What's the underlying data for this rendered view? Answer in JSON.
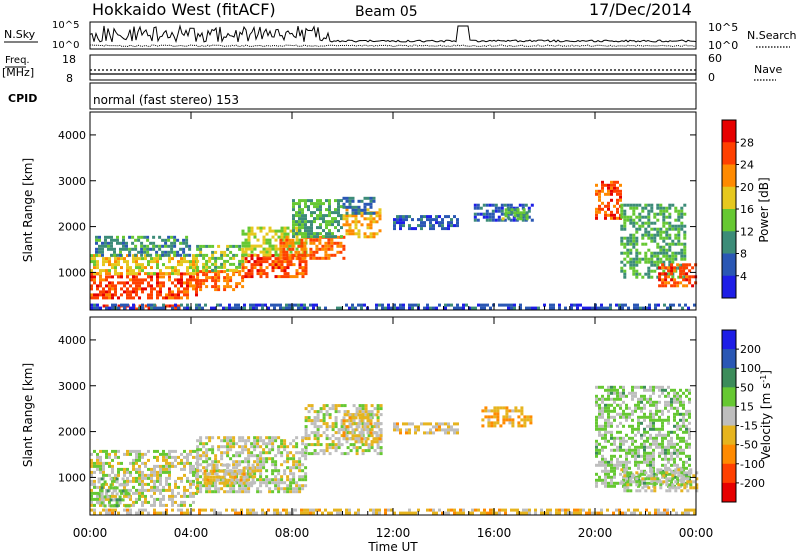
{
  "header": {
    "station": "Hokkaido West (fitACF)",
    "beam": "Beam 05",
    "date": "17/Dec/2014"
  },
  "noise_panel": {
    "left_label": "N.Sky",
    "right_label": "N.Search",
    "left_ticks": [
      "10^5",
      "10^0"
    ],
    "right_ticks": [
      "10^5",
      "10^0"
    ]
  },
  "freq_panel": {
    "left_label": "Freq.",
    "left_unit": "[MHz]",
    "right_label": "Nave",
    "left_ticks": [
      "18",
      "8"
    ],
    "right_ticks": [
      "60",
      "0"
    ]
  },
  "cpid": {
    "label": "CPID",
    "value": "normal (fast stereo) 153"
  },
  "x_axis": {
    "label": "Time UT",
    "ticks": [
      "00:00",
      "04:00",
      "08:00",
      "12:00",
      "16:00",
      "20:00",
      "00:00"
    ]
  },
  "power_panel": {
    "ylabel": "Slant Range [km]",
    "yticks": [
      "1000",
      "2000",
      "3000",
      "4000"
    ],
    "colorbar_label": "Power [dB]",
    "colorbar_ticks": [
      "4",
      "8",
      "12",
      "16",
      "20",
      "24",
      "28"
    ]
  },
  "velocity_panel": {
    "ylabel": "Slant Range [km]",
    "yticks": [
      "1000",
      "2000",
      "3000",
      "4000"
    ],
    "colorbar_label": "Velocity [m s^-1]",
    "colorbar_ticks": [
      "200",
      "100",
      "50",
      "15",
      "-15",
      "-50",
      "-100",
      "-200"
    ]
  },
  "chart_data": [
    {
      "type": "heatmap",
      "variable": "power",
      "unit": "dB",
      "x_range_hours": [
        0,
        24
      ],
      "y_range_km": [
        180,
        4500
      ],
      "color_range": [
        0,
        32
      ],
      "colors": [
        "#1e1ee6",
        "#2a57b4",
        "#3c8c78",
        "#66c832",
        "#e6c81e",
        "#ff8a00",
        "#ff4000",
        "#e60000"
      ],
      "regions": [
        {
          "t0": 0.0,
          "t1": 4.2,
          "r0": 420,
          "r1": 1000,
          "level": 26
        },
        {
          "t0": 0.0,
          "t1": 4.2,
          "r0": 1000,
          "r1": 1400,
          "level": 18
        },
        {
          "t0": 0.2,
          "t1": 4.0,
          "r0": 1400,
          "r1": 1800,
          "level": 10
        },
        {
          "t0": 0.5,
          "t1": 3.5,
          "r0": 230,
          "r1": 300,
          "level": 28
        },
        {
          "t0": 4.2,
          "t1": 6.0,
          "r0": 650,
          "r1": 1050,
          "level": 24
        },
        {
          "t0": 4.2,
          "t1": 6.0,
          "r0": 1050,
          "r1": 1600,
          "level": 14
        },
        {
          "t0": 6.0,
          "t1": 8.5,
          "r0": 900,
          "r1": 1400,
          "level": 26
        },
        {
          "t0": 6.0,
          "t1": 8.5,
          "r0": 1400,
          "r1": 2000,
          "level": 16
        },
        {
          "t0": 7.5,
          "t1": 10.0,
          "r0": 1300,
          "r1": 1800,
          "level": 24
        },
        {
          "t0": 8.0,
          "t1": 10.0,
          "r0": 1800,
          "r1": 2600,
          "level": 12
        },
        {
          "t0": 10.0,
          "t1": 11.5,
          "r0": 1800,
          "r1": 2400,
          "level": 20
        },
        {
          "t0": 10.0,
          "t1": 11.3,
          "r0": 2300,
          "r1": 2650,
          "level": 8
        },
        {
          "t0": 12.0,
          "t1": 14.5,
          "r0": 1950,
          "r1": 2250,
          "level": 6
        },
        {
          "t0": 15.2,
          "t1": 17.5,
          "r0": 2150,
          "r1": 2500,
          "level": 6
        },
        {
          "t0": 16.3,
          "t1": 17.3,
          "r0": 2200,
          "r1": 2400,
          "level": 14
        },
        {
          "t0": 20.0,
          "t1": 21.0,
          "r0": 2200,
          "r1": 3000,
          "level": 26
        },
        {
          "t0": 21.0,
          "t1": 23.5,
          "r0": 900,
          "r1": 2500,
          "level": 12
        },
        {
          "t0": 22.5,
          "t1": 24.0,
          "r0": 700,
          "r1": 1200,
          "level": 26
        },
        {
          "t0": 0.0,
          "t1": 24.0,
          "r0": 200,
          "r1": 320,
          "level": 6
        }
      ]
    },
    {
      "type": "heatmap",
      "variable": "velocity",
      "unit": "m s^-1",
      "x_range_hours": [
        0,
        24
      ],
      "y_range_km": [
        180,
        4500
      ],
      "color_range": [
        -200,
        200
      ],
      "colors": [
        "#e60000",
        "#ff4000",
        "#ff8a00",
        "#e6b41e",
        "#bebebe",
        "#66c832",
        "#3c8c5a",
        "#2a57b4",
        "#1e1ee6"
      ],
      "regions": [
        {
          "t0": 0.0,
          "t1": 4.2,
          "r0": 400,
          "r1": 1600,
          "level": 0
        },
        {
          "t0": 0.3,
          "t1": 1.5,
          "r0": 400,
          "r1": 1000,
          "level": 40
        },
        {
          "t0": 4.2,
          "t1": 8.5,
          "r0": 700,
          "r1": 1900,
          "level": 0
        },
        {
          "t0": 4.5,
          "t1": 6.5,
          "r0": 900,
          "r1": 1300,
          "level": -30
        },
        {
          "t0": 8.5,
          "t1": 11.5,
          "r0": 1500,
          "r1": 2600,
          "level": 0
        },
        {
          "t0": 10.0,
          "t1": 11.5,
          "r0": 1800,
          "r1": 2400,
          "level": -30
        },
        {
          "t0": 12.0,
          "t1": 14.5,
          "r0": 1950,
          "r1": 2200,
          "level": -30
        },
        {
          "t0": 15.5,
          "t1": 17.5,
          "r0": 2150,
          "r1": 2550,
          "level": -60
        },
        {
          "t0": 20.0,
          "t1": 23.8,
          "r0": 800,
          "r1": 3000,
          "level": 30
        },
        {
          "t0": 21.0,
          "t1": 24.0,
          "r0": 700,
          "r1": 1200,
          "level": 0
        },
        {
          "t0": 0.0,
          "t1": 24.0,
          "r0": 200,
          "r1": 320,
          "level": -40
        }
      ]
    }
  ]
}
